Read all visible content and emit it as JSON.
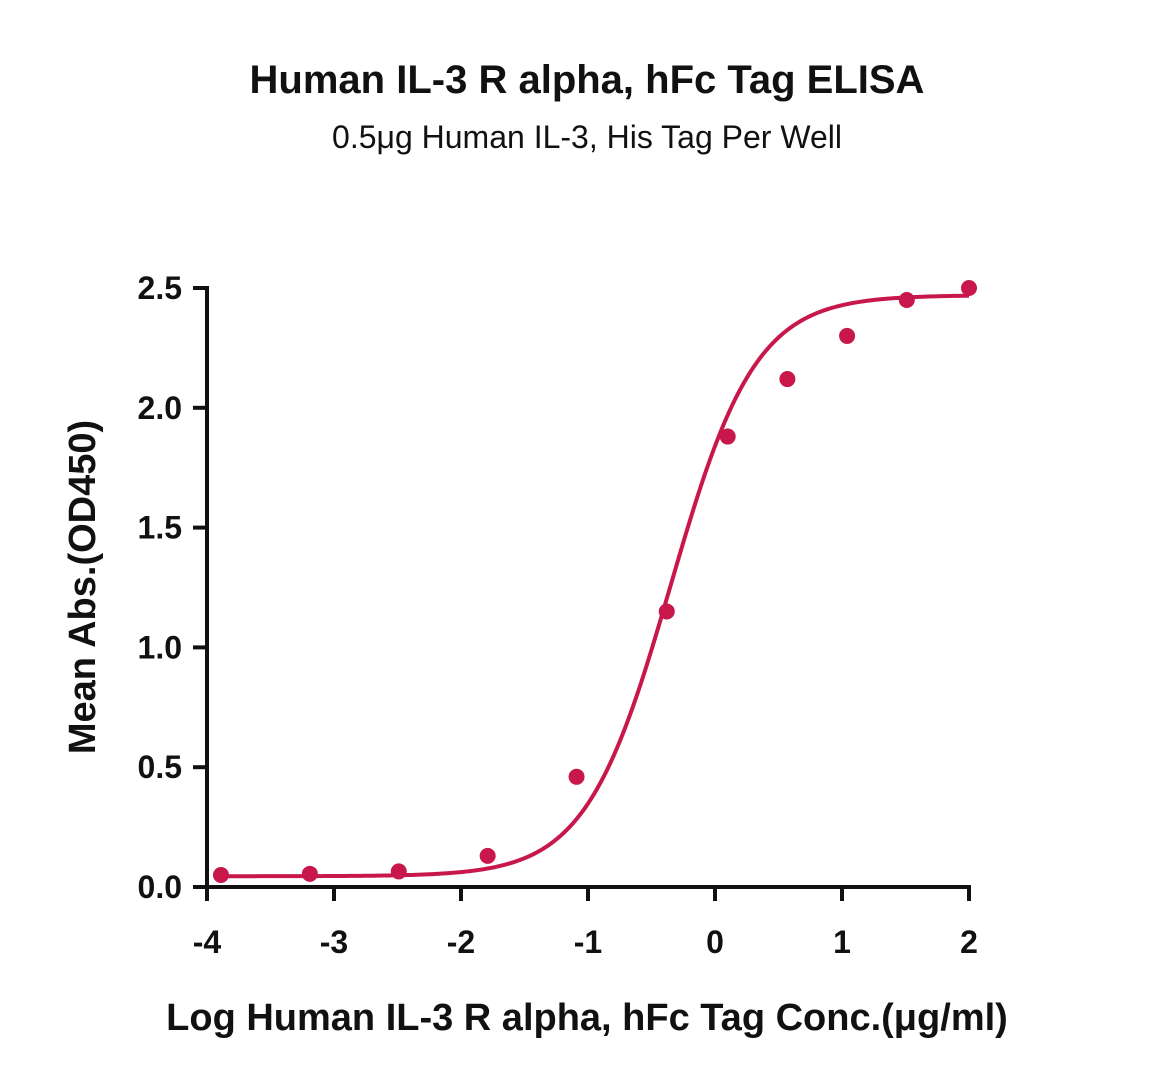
{
  "chart_data": {
    "type": "scatter",
    "title": "Human IL-3 R alpha, hFc Tag ELISA",
    "subtitle": "0.5μg Human IL-3, His Tag Per Well",
    "xlabel": "Log Human IL-3 R alpha, hFc Tag Conc.(μg/ml)",
    "ylabel": "Mean Abs.(OD450)",
    "xlim": [
      -4,
      2
    ],
    "ylim": [
      0,
      2.5
    ],
    "xticks": [
      "-4",
      "-3",
      "-2",
      "-1",
      "0",
      "1",
      "2"
    ],
    "yticks": [
      "0.0",
      "0.5",
      "1.0",
      "1.5",
      "2.0",
      "2.5"
    ],
    "grid": false,
    "series": [
      {
        "x": [
          -3.89,
          -3.19,
          -2.49,
          -1.79,
          -1.09,
          -0.38,
          0.1,
          0.57,
          1.04,
          1.51,
          2.0
        ],
        "y": [
          0.05,
          0.055,
          0.065,
          0.13,
          0.46,
          1.15,
          1.88,
          2.12,
          2.3,
          2.45,
          2.5
        ],
        "color": "#c8174a"
      }
    ],
    "fit_curve": {
      "model": "4PL",
      "bottom": 0.045,
      "top": 2.47,
      "log_ec50": -0.35,
      "hill": 1.3,
      "color": "#c8174a"
    }
  }
}
